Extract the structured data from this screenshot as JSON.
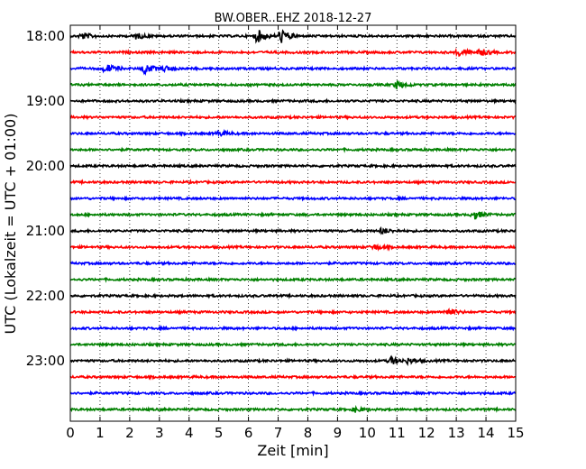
{
  "chart_data": {
    "type": "line",
    "title": "BW.OBER..EHZ 2018-12-27",
    "xlabel": "Zeit  [min]",
    "ylabel": "UTC (Lokalzeit = UTC + 01:00)",
    "xlim": [
      0,
      15
    ],
    "x_ticks": [
      "0",
      "1",
      "2",
      "3",
      "4",
      "5",
      "6",
      "7",
      "8",
      "9",
      "10",
      "11",
      "12",
      "13",
      "14",
      "15"
    ],
    "y_tick_labels": [
      "18:00",
      "19:00",
      "20:00",
      "21:00",
      "22:00",
      "23:00"
    ],
    "grid": "vertical dotted",
    "trace_colors": [
      "#000000",
      "#ff0000",
      "#0000ff",
      "#008000"
    ],
    "trace_start_times": [
      "18:00",
      "18:15",
      "18:30",
      "18:45",
      "19:00",
      "19:15",
      "19:30",
      "19:45",
      "20:00",
      "20:15",
      "20:30",
      "20:45",
      "21:00",
      "21:15",
      "21:30",
      "21:45",
      "22:00",
      "22:15",
      "22:30",
      "22:45",
      "23:00",
      "23:15",
      "23:30",
      "23:45"
    ],
    "events": [
      {
        "trace": 0,
        "x": 0.4,
        "amp": 0.35
      },
      {
        "trace": 0,
        "x": 2.2,
        "amp": 0.3
      },
      {
        "trace": 0,
        "x": 6.3,
        "amp": 0.7
      },
      {
        "trace": 0,
        "x": 7.1,
        "amp": 0.75
      },
      {
        "trace": 1,
        "x": 13.1,
        "amp": 0.45
      },
      {
        "trace": 1,
        "x": 13.8,
        "amp": 0.35
      },
      {
        "trace": 2,
        "x": 1.2,
        "amp": 0.5
      },
      {
        "trace": 2,
        "x": 2.5,
        "amp": 0.55
      },
      {
        "trace": 2,
        "x": 3.2,
        "amp": 0.3
      },
      {
        "trace": 3,
        "x": 11.0,
        "amp": 0.4
      },
      {
        "trace": 6,
        "x": 5.0,
        "amp": 0.25
      },
      {
        "trace": 11,
        "x": 13.6,
        "amp": 0.45
      },
      {
        "trace": 12,
        "x": 10.5,
        "amp": 0.3
      },
      {
        "trace": 13,
        "x": 10.2,
        "amp": 0.3
      },
      {
        "trace": 17,
        "x": 12.7,
        "amp": 0.45
      },
      {
        "trace": 20,
        "x": 10.8,
        "amp": 0.4
      },
      {
        "trace": 20,
        "x": 11.4,
        "amp": 0.3
      },
      {
        "trace": 23,
        "x": 9.6,
        "amp": 0.25
      }
    ]
  }
}
